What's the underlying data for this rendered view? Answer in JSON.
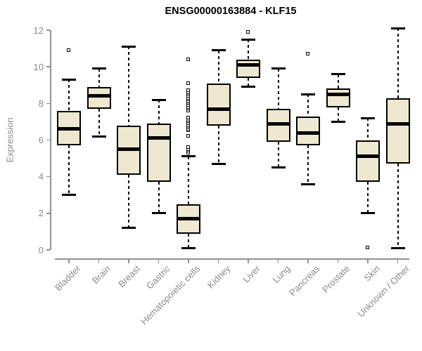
{
  "chart_data": {
    "type": "boxplot",
    "title": "ENSG00000163884 - KLF15",
    "ylabel": "Expression",
    "xlabel": "",
    "ylim": [
      0,
      12
    ],
    "yticks": [
      0,
      2,
      4,
      6,
      8,
      10,
      12
    ],
    "grid": false,
    "legend": "none",
    "box_fill_color": "#EDE8CF",
    "box_line_color": "#000000",
    "axis_color": "#909090",
    "label_color": "#888B90",
    "title_color": "#000000",
    "categories": [
      "Bladder",
      "Brain",
      "Breast",
      "Gastric",
      "Hematopoietic cells",
      "Kidney",
      "Liver",
      "Lung",
      "Pancreas",
      "Prostate",
      "Skin",
      "Unknown / Other"
    ],
    "series": [
      {
        "name": "Bladder",
        "low": 3.0,
        "q1": 5.7,
        "median": 6.6,
        "q3": 7.6,
        "high": 9.3,
        "outliers": [
          10.9
        ]
      },
      {
        "name": "Brain",
        "low": 6.2,
        "q1": 7.7,
        "median": 8.4,
        "q3": 8.9,
        "high": 9.9,
        "outliers": []
      },
      {
        "name": "Breast",
        "low": 1.2,
        "q1": 4.1,
        "median": 5.5,
        "q3": 6.8,
        "high": 11.1,
        "outliers": []
      },
      {
        "name": "Gastric",
        "low": 2.0,
        "q1": 3.7,
        "median": 6.1,
        "q3": 6.9,
        "high": 8.2,
        "outliers": []
      },
      {
        "name": "Hematopoietic cells",
        "low": 0.1,
        "q1": 0.9,
        "median": 1.7,
        "q3": 2.5,
        "high": 5.1,
        "outliers": [
          5.3,
          5.4,
          5.5,
          5.6,
          6.2,
          6.5,
          6.6,
          6.7,
          6.8,
          6.9,
          7.0,
          7.1,
          7.2,
          7.6,
          7.7,
          7.8,
          7.9,
          8.0,
          8.1,
          8.2,
          8.3,
          8.4,
          8.5,
          8.6,
          8.7,
          9.1,
          10.4
        ]
      },
      {
        "name": "Kidney",
        "low": 4.7,
        "q1": 6.8,
        "median": 7.7,
        "q3": 9.1,
        "high": 10.9,
        "outliers": []
      },
      {
        "name": "Liver",
        "low": 8.9,
        "q1": 9.4,
        "median": 10.1,
        "q3": 10.4,
        "high": 11.5,
        "outliers": [
          11.9
        ]
      },
      {
        "name": "Lung",
        "low": 4.5,
        "q1": 5.9,
        "median": 6.9,
        "q3": 7.7,
        "high": 9.9,
        "outliers": []
      },
      {
        "name": "Pancreas",
        "low": 3.6,
        "q1": 5.7,
        "median": 6.4,
        "q3": 7.3,
        "high": 8.5,
        "outliers": [
          10.7
        ]
      },
      {
        "name": "Prostate",
        "low": 7.0,
        "q1": 7.8,
        "median": 8.5,
        "q3": 8.8,
        "high": 9.6,
        "outliers": []
      },
      {
        "name": "Skin",
        "low": 2.0,
        "q1": 3.7,
        "median": 5.1,
        "q3": 6.0,
        "high": 7.2,
        "outliers": [
          0.1
        ]
      },
      {
        "name": "Unknown / Other",
        "low": 0.1,
        "q1": 4.7,
        "median": 6.9,
        "q3": 8.3,
        "high": 12.1,
        "outliers": []
      }
    ]
  }
}
